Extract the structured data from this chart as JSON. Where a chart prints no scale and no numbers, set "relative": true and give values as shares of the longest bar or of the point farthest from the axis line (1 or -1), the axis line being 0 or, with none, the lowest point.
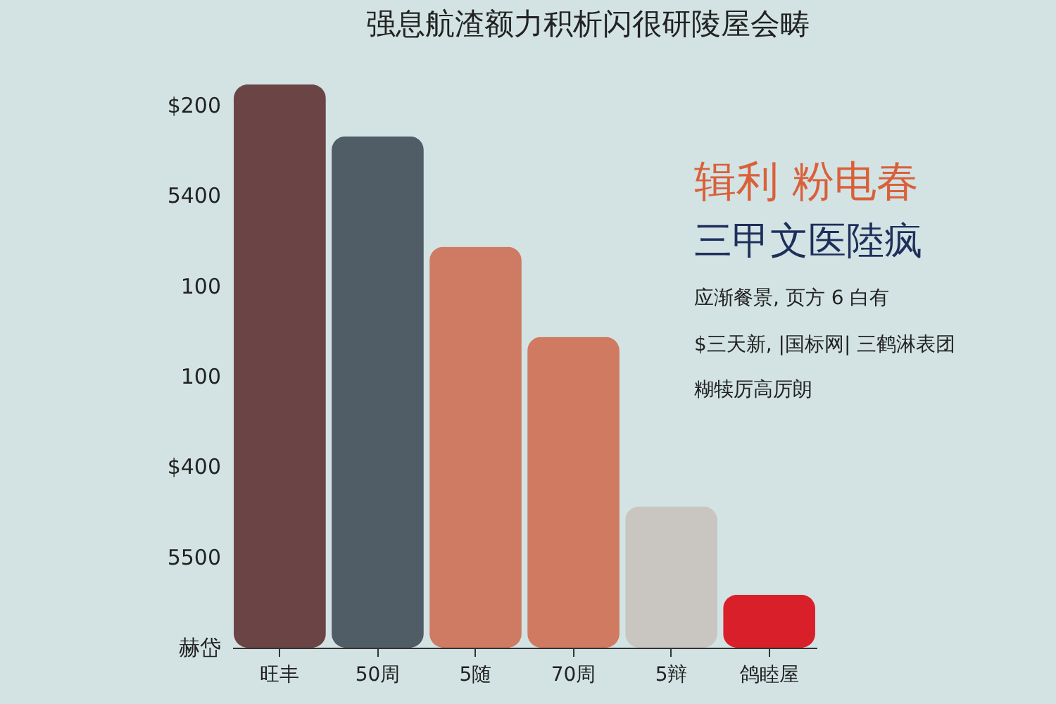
{
  "chart_data": {
    "type": "bar",
    "title": "强息航渣额力积析闪很研陵屋会畴",
    "relative": true,
    "categories": [
      "旺丰",
      "50周",
      "5随",
      "70周",
      "5辩",
      "鸽睦屋"
    ],
    "values": [
      1,
      0.908,
      0.712,
      0.552,
      0.251,
      0.094
    ],
    "colors": [
      "#6b4446",
      "#505c66",
      "#cf7a62",
      "#d07a62",
      "#c9c6c2",
      "#d9202a"
    ],
    "annotations": [
      "$200",
      "5400",
      "100",
      "100",
      "$400",
      "5500",
      "赫岱",
      "辑利 粉电春",
      "三甲文医陸疯",
      "应渐餐景, 页方 6 白有",
      "$三天新, |国标网| 三鹤淋表团",
      "糊犊厉高厉朗"
    ]
  }
}
